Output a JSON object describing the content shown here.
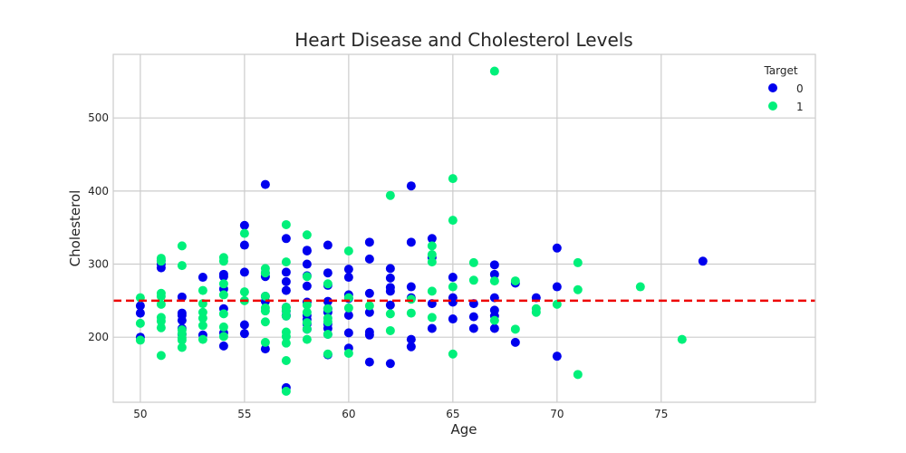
{
  "chart_data": {
    "type": "scatter",
    "title": "Heart Disease and Cholesterol Levels",
    "xlabel": "Age",
    "ylabel": "Cholesterol",
    "xlim": [
      48.7,
      82.4
    ],
    "ylim": [
      111,
      587
    ],
    "xticks": [
      50,
      55,
      60,
      65,
      70,
      75
    ],
    "yticks": [
      200,
      300,
      400,
      500
    ],
    "grid": true,
    "legend": {
      "title": "Target",
      "placement": "top-right",
      "entries": [
        "0",
        "1"
      ]
    },
    "reference_line": {
      "y": 250,
      "color": "#ee0000",
      "style": "dashed"
    },
    "colors": {
      "target_0": "#0000ee",
      "target_1": "#00f07a"
    },
    "series": [
      {
        "name": "0",
        "color": "#0000ee",
        "points": [
          [
            50,
            200
          ],
          [
            50,
            233
          ],
          [
            50,
            243
          ],
          [
            51,
            295
          ],
          [
            51,
            300
          ],
          [
            51,
            305
          ],
          [
            52,
            204
          ],
          [
            52,
            212
          ],
          [
            52,
            230
          ],
          [
            52,
            233
          ],
          [
            52,
            255
          ],
          [
            52,
            223
          ],
          [
            53,
            203
          ],
          [
            53,
            282
          ],
          [
            54,
            188
          ],
          [
            54,
            206
          ],
          [
            54,
            239
          ],
          [
            54,
            266
          ],
          [
            54,
            283
          ],
          [
            54,
            286
          ],
          [
            55,
            205
          ],
          [
            55,
            217
          ],
          [
            55,
            289
          ],
          [
            55,
            326
          ],
          [
            55,
            353
          ],
          [
            56,
            184
          ],
          [
            56,
            249
          ],
          [
            56,
            256
          ],
          [
            56,
            283
          ],
          [
            56,
            288
          ],
          [
            56,
            409
          ],
          [
            57,
            131
          ],
          [
            57,
            230
          ],
          [
            57,
            236
          ],
          [
            57,
            241
          ],
          [
            57,
            276
          ],
          [
            57,
            289
          ],
          [
            57,
            335
          ],
          [
            57,
            264
          ],
          [
            57,
            229
          ],
          [
            58,
            211
          ],
          [
            58,
            218
          ],
          [
            58,
            224
          ],
          [
            58,
            230
          ],
          [
            58,
            248
          ],
          [
            58,
            270
          ],
          [
            58,
            284
          ],
          [
            58,
            300
          ],
          [
            58,
            318
          ],
          [
            58,
            319
          ],
          [
            59,
            176
          ],
          [
            59,
            204
          ],
          [
            59,
            212
          ],
          [
            59,
            218
          ],
          [
            59,
            234
          ],
          [
            59,
            239
          ],
          [
            59,
            249
          ],
          [
            59,
            271
          ],
          [
            59,
            288
          ],
          [
            59,
            326
          ],
          [
            60,
            185
          ],
          [
            60,
            206
          ],
          [
            60,
            230
          ],
          [
            60,
            253
          ],
          [
            60,
            258
          ],
          [
            60,
            282
          ],
          [
            60,
            293
          ],
          [
            61,
            166
          ],
          [
            61,
            203
          ],
          [
            61,
            207
          ],
          [
            61,
            234
          ],
          [
            61,
            260
          ],
          [
            61,
            307
          ],
          [
            61,
            330
          ],
          [
            62,
            164
          ],
          [
            62,
            244
          ],
          [
            62,
            263
          ],
          [
            62,
            268
          ],
          [
            62,
            281
          ],
          [
            62,
            294
          ],
          [
            63,
            187
          ],
          [
            63,
            197
          ],
          [
            63,
            254
          ],
          [
            63,
            269
          ],
          [
            63,
            330
          ],
          [
            63,
            407
          ],
          [
            64,
            212
          ],
          [
            64,
            246
          ],
          [
            64,
            309
          ],
          [
            64,
            335
          ],
          [
            65,
            225
          ],
          [
            65,
            248
          ],
          [
            65,
            254
          ],
          [
            65,
            282
          ],
          [
            66,
            212
          ],
          [
            66,
            228
          ],
          [
            66,
            246
          ],
          [
            67,
            212
          ],
          [
            67,
            229
          ],
          [
            67,
            237
          ],
          [
            67,
            254
          ],
          [
            67,
            286
          ],
          [
            67,
            299
          ],
          [
            68,
            193
          ],
          [
            68,
            274
          ],
          [
            69,
            254
          ],
          [
            70,
            174
          ],
          [
            70,
            269
          ],
          [
            70,
            322
          ],
          [
            77,
            304
          ]
        ]
      },
      {
        "name": "1",
        "color": "#00f07a",
        "points": [
          [
            50,
            196
          ],
          [
            50,
            219
          ],
          [
            50,
            254
          ],
          [
            51,
            175
          ],
          [
            51,
            213
          ],
          [
            51,
            222
          ],
          [
            51,
            227
          ],
          [
            51,
            245
          ],
          [
            51,
            256
          ],
          [
            51,
            260
          ],
          [
            51,
            304
          ],
          [
            51,
            308
          ],
          [
            52,
            186
          ],
          [
            52,
            196
          ],
          [
            52,
            199
          ],
          [
            52,
            205
          ],
          [
            52,
            210
          ],
          [
            52,
            298
          ],
          [
            52,
            325
          ],
          [
            53,
            197
          ],
          [
            53,
            216
          ],
          [
            53,
            226
          ],
          [
            53,
            234
          ],
          [
            53,
            246
          ],
          [
            53,
            264
          ],
          [
            54,
            201
          ],
          [
            54,
            214
          ],
          [
            54,
            232
          ],
          [
            54,
            258
          ],
          [
            54,
            273
          ],
          [
            54,
            304
          ],
          [
            54,
            309
          ],
          [
            55,
            250
          ],
          [
            55,
            262
          ],
          [
            55,
            342
          ],
          [
            56,
            193
          ],
          [
            56,
            221
          ],
          [
            56,
            236
          ],
          [
            56,
            240
          ],
          [
            56,
            256
          ],
          [
            56,
            288
          ],
          [
            56,
            294
          ],
          [
            57,
            126
          ],
          [
            57,
            168
          ],
          [
            57,
            192
          ],
          [
            57,
            201
          ],
          [
            57,
            207
          ],
          [
            57,
            229
          ],
          [
            57,
            236
          ],
          [
            57,
            241
          ],
          [
            57,
            303
          ],
          [
            57,
            354
          ],
          [
            58,
            197
          ],
          [
            58,
            211
          ],
          [
            58,
            220
          ],
          [
            58,
            234
          ],
          [
            58,
            244
          ],
          [
            58,
            283
          ],
          [
            58,
            340
          ],
          [
            59,
            177
          ],
          [
            59,
            204
          ],
          [
            59,
            221
          ],
          [
            59,
            226
          ],
          [
            59,
            239
          ],
          [
            59,
            273
          ],
          [
            60,
            178
          ],
          [
            60,
            240
          ],
          [
            60,
            254
          ],
          [
            60,
            318
          ],
          [
            61,
            243
          ],
          [
            62,
            209
          ],
          [
            62,
            232
          ],
          [
            62,
            394
          ],
          [
            63,
            233
          ],
          [
            63,
            252
          ],
          [
            64,
            227
          ],
          [
            64,
            263
          ],
          [
            64,
            303
          ],
          [
            64,
            313
          ],
          [
            64,
            325
          ],
          [
            65,
            177
          ],
          [
            65,
            269
          ],
          [
            65,
            360
          ],
          [
            65,
            417
          ],
          [
            66,
            278
          ],
          [
            66,
            302
          ],
          [
            67,
            223
          ],
          [
            67,
            277
          ],
          [
            67,
            564
          ],
          [
            68,
            211
          ],
          [
            68,
            277
          ],
          [
            69,
            234
          ],
          [
            69,
            239
          ],
          [
            70,
            245
          ],
          [
            71,
            149
          ],
          [
            71,
            265
          ],
          [
            71,
            302
          ],
          [
            74,
            269
          ],
          [
            76,
            197
          ]
        ]
      }
    ]
  }
}
